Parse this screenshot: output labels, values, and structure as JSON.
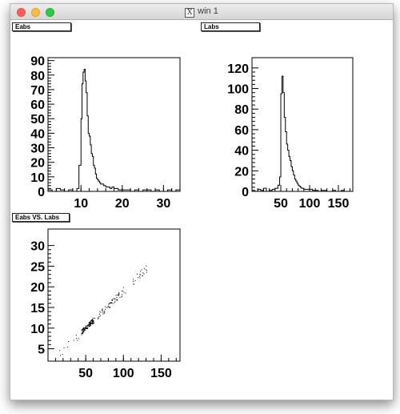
{
  "window": {
    "title": "win 1",
    "title_icon": "x11-icon",
    "buttons": [
      "close",
      "minimize",
      "maximize"
    ]
  },
  "pads": {
    "eabs_label": "Eabs",
    "labs_label": "Labs",
    "scatter_label": "Eabs VS. Labs"
  },
  "chart_data": [
    {
      "type": "bar",
      "style": "histogram-step",
      "title": "Eabs",
      "xlabel": "",
      "ylabel": "",
      "xlim": [
        2,
        34
      ],
      "ylim": [
        0,
        92
      ],
      "xticks": [
        10,
        20,
        30
      ],
      "yticks": [
        0,
        10,
        20,
        30,
        40,
        50,
        60,
        70,
        80,
        90
      ],
      "bins": {
        "x": [
          2,
          3,
          4,
          5,
          6,
          7,
          8,
          9,
          9.5,
          10,
          10.25,
          10.5,
          10.75,
          11,
          11.25,
          11.5,
          11.75,
          12,
          12.25,
          12.5,
          12.75,
          13,
          13.25,
          13.5,
          13.75,
          14,
          14.25,
          14.5,
          14.75,
          15,
          15.5,
          16,
          16.5,
          17,
          17.5,
          18,
          18.5,
          19,
          20,
          21,
          22,
          23,
          24,
          25,
          26,
          27,
          28,
          29,
          30,
          31,
          32,
          33
        ],
        "values": [
          1,
          0,
          2,
          1,
          0,
          1,
          0,
          2,
          18,
          50,
          74,
          82,
          84,
          76,
          68,
          52,
          40,
          38,
          32,
          26,
          24,
          18,
          16,
          12,
          9,
          8,
          7,
          6,
          5,
          5,
          4,
          3,
          3,
          2,
          3,
          2,
          2,
          1,
          1,
          1,
          0,
          1,
          0,
          1,
          1,
          0,
          1,
          0,
          0,
          1,
          0,
          1
        ]
      }
    },
    {
      "type": "bar",
      "style": "histogram-step",
      "title": "Labs",
      "xlabel": "",
      "ylabel": "",
      "xlim": [
        0,
        175
      ],
      "ylim": [
        0,
        130
      ],
      "xticks": [
        50,
        100,
        150
      ],
      "yticks": [
        0,
        20,
        40,
        60,
        80,
        100,
        120
      ],
      "bins": {
        "x": [
          0,
          5,
          10,
          15,
          20,
          25,
          30,
          35,
          40,
          45,
          48,
          50,
          52,
          54,
          56,
          58,
          60,
          62,
          64,
          66,
          68,
          70,
          72,
          74,
          76,
          78,
          80,
          82,
          84,
          86,
          88,
          90,
          95,
          100,
          105,
          110,
          115,
          120,
          125,
          130,
          135,
          140,
          145,
          150,
          155,
          160,
          165,
          170
        ],
        "values": [
          1,
          0,
          2,
          1,
          3,
          0,
          1,
          2,
          3,
          6,
          14,
          95,
          112,
          96,
          72,
          58,
          46,
          40,
          34,
          30,
          24,
          20,
          16,
          12,
          10,
          8,
          6,
          5,
          4,
          3,
          3,
          2,
          2,
          2,
          1,
          1,
          0,
          1,
          1,
          0,
          0,
          1,
          0,
          0,
          1,
          0,
          0,
          0
        ]
      }
    },
    {
      "type": "scatter",
      "title": "Eabs VS. Labs",
      "xlabel": "",
      "ylabel": "",
      "xlim": [
        0,
        175
      ],
      "ylim": [
        2,
        34
      ],
      "xticks": [
        50,
        100,
        150
      ],
      "yticks": [
        5,
        10,
        15,
        20,
        25,
        30
      ],
      "point_groups": [
        {
          "x_range": [
            44,
            60
          ],
          "y_center_slope": 0.178,
          "y_intercept": 1.3,
          "count": 120,
          "spread": 0.6
        },
        {
          "x_range": [
            60,
            95
          ],
          "y_center_slope": 0.178,
          "y_intercept": 1.3,
          "count": 60,
          "spread": 0.8
        },
        {
          "x_range": [
            95,
            132
          ],
          "y_center_slope": 0.178,
          "y_intercept": 1.3,
          "count": 30,
          "spread": 1.0
        },
        {
          "x_range": [
            15,
            44
          ],
          "y_center_slope": 0.178,
          "y_intercept": 1.3,
          "count": 12,
          "spread": 1.0
        }
      ]
    }
  ]
}
